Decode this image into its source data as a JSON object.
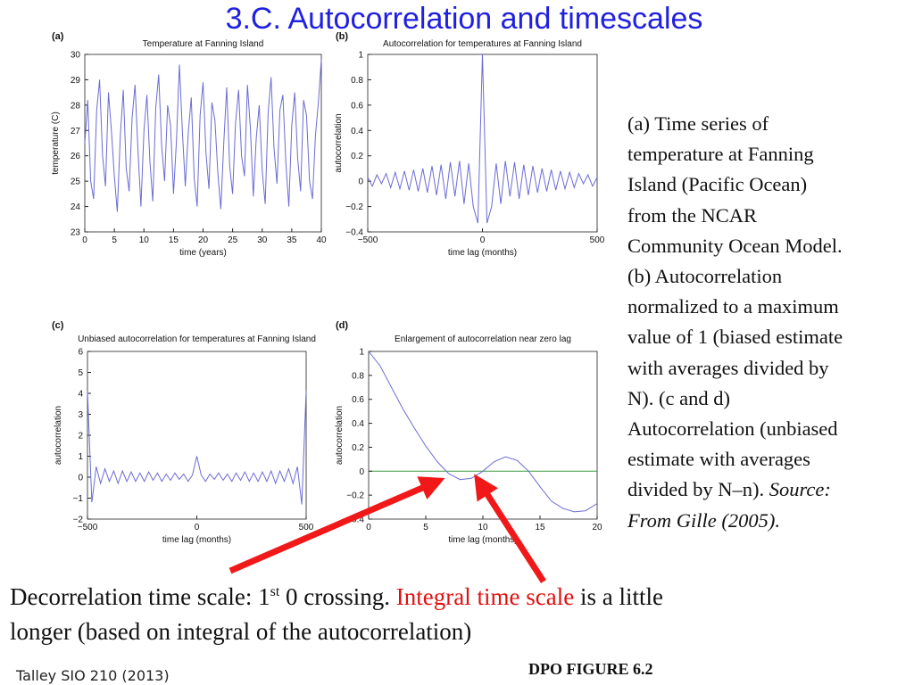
{
  "title": "3.C. Autocorrelation and timescales",
  "chart_data": [
    {
      "type": "line",
      "label": "(a)",
      "title": "Temperature at Fanning Island",
      "xlabel": "time (years)",
      "ylabel": "temperature (C)",
      "color": "#6b6bd6",
      "xlim": [
        0,
        40
      ],
      "ylim": [
        23,
        30
      ],
      "xticks": [
        0,
        5,
        10,
        15,
        20,
        25,
        30,
        35,
        40
      ],
      "yticks": [
        23,
        24,
        25,
        26,
        27,
        28,
        29,
        30
      ],
      "x": [
        0,
        0.5,
        1,
        1.5,
        2,
        2.5,
        3,
        3.5,
        4,
        4.5,
        5,
        5.5,
        6,
        6.5,
        7,
        7.5,
        8,
        8.5,
        9,
        9.5,
        10,
        10.5,
        11,
        11.5,
        12,
        12.5,
        13,
        13.5,
        14,
        14.5,
        15,
        15.5,
        16,
        16.5,
        17,
        17.5,
        18,
        18.5,
        19,
        19.5,
        20,
        20.5,
        21,
        21.5,
        22,
        22.5,
        23,
        23.5,
        24,
        24.5,
        25,
        25.5,
        26,
        26.5,
        27,
        27.5,
        28,
        28.5,
        29,
        29.5,
        30,
        30.5,
        31,
        31.5,
        32,
        32.5,
        33,
        33.5,
        34,
        34.5,
        35,
        35.5,
        36,
        36.5,
        37,
        37.5,
        38,
        38.5,
        39,
        39.5,
        40
      ],
      "values": [
        26.5,
        28.2,
        25.0,
        24.3,
        27.8,
        29.0,
        26.0,
        24.8,
        28.5,
        27.0,
        25.2,
        23.8,
        26.8,
        28.6,
        25.5,
        24.6,
        27.5,
        28.8,
        26.2,
        24.0,
        27.0,
        28.4,
        25.8,
        24.2,
        27.9,
        29.2,
        26.4,
        25.0,
        28.0,
        27.2,
        24.5,
        26.6,
        29.6,
        27.0,
        24.8,
        26.9,
        28.3,
        25.1,
        24.0,
        27.6,
        28.9,
        26.1,
        24.7,
        28.1,
        27.4,
        25.3,
        23.9,
        26.5,
        28.7,
        25.6,
        24.5,
        27.3,
        28.6,
        26.0,
        25.2,
        28.8,
        27.1,
        24.4,
        26.7,
        28.0,
        25.4,
        24.1,
        27.7,
        29.1,
        26.3,
        24.9,
        27.8,
        28.4,
        25.7,
        24.0,
        27.2,
        28.5,
        25.9,
        24.6,
        28.2,
        27.6,
        25.0,
        24.3,
        26.8,
        28.1,
        29.8
      ]
    },
    {
      "type": "line",
      "label": "(b)",
      "title": "Autocorrelation for temperatures at Fanning Island",
      "xlabel": "time lag (months)",
      "ylabel": "autocorrelation",
      "color": "#6b6bd6",
      "xlim": [
        -500,
        500
      ],
      "ylim": [
        -0.4,
        1
      ],
      "xticks": [
        {
          "value": -500,
          "label": "−500"
        },
        0,
        500
      ],
      "yticks": [
        {
          "value": -0.4,
          "label": "−0.4"
        },
        {
          "value": -0.2,
          "label": "−0.2"
        },
        0,
        0.2,
        0.4,
        0.6,
        0.8,
        1
      ],
      "x": [
        -500,
        -480,
        -460,
        -440,
        -420,
        -400,
        -380,
        -360,
        -340,
        -320,
        -300,
        -280,
        -260,
        -240,
        -220,
        -200,
        -180,
        -160,
        -140,
        -120,
        -100,
        -80,
        -60,
        -40,
        -20,
        0,
        20,
        40,
        60,
        80,
        100,
        120,
        140,
        160,
        180,
        200,
        220,
        240,
        260,
        280,
        300,
        320,
        340,
        360,
        380,
        400,
        420,
        440,
        460,
        480,
        500
      ],
      "values": [
        0.03,
        -0.04,
        0.05,
        -0.02,
        0.06,
        -0.05,
        0.07,
        -0.06,
        0.08,
        -0.07,
        0.09,
        -0.08,
        0.1,
        -0.09,
        0.12,
        -0.11,
        0.13,
        -0.14,
        0.15,
        -0.12,
        0.16,
        -0.18,
        0.14,
        -0.2,
        -0.33,
        1,
        -0.33,
        -0.2,
        0.14,
        -0.18,
        0.16,
        -0.12,
        0.15,
        -0.14,
        0.13,
        -0.11,
        0.12,
        -0.09,
        0.1,
        -0.08,
        0.09,
        -0.07,
        0.08,
        -0.06,
        0.07,
        -0.05,
        0.06,
        -0.02,
        0.05,
        -0.04,
        0.03
      ]
    },
    {
      "type": "line",
      "label": "(c)",
      "title": "Unbiased autocorrelation for temperatures at Fanning Island",
      "xlabel": "time lag (months)",
      "ylabel": "autocorrelation",
      "color": "#6b6bd6",
      "xlim": [
        -500,
        500
      ],
      "ylim": [
        -2,
        6
      ],
      "xticks": [
        {
          "value": -500,
          "label": "−500"
        },
        0,
        500
      ],
      "yticks": [
        {
          "value": -2,
          "label": "−2"
        },
        {
          "value": -1,
          "label": "−1"
        },
        0,
        1,
        2,
        3,
        4,
        5,
        6
      ],
      "x": [
        -500,
        -480,
        -460,
        -440,
        -420,
        -400,
        -380,
        -360,
        -340,
        -320,
        -300,
        -280,
        -260,
        -240,
        -220,
        -200,
        -180,
        -160,
        -140,
        -120,
        -100,
        -80,
        -60,
        -40,
        -20,
        0,
        20,
        40,
        60,
        80,
        100,
        120,
        140,
        160,
        180,
        200,
        220,
        240,
        260,
        280,
        300,
        320,
        340,
        360,
        380,
        400,
        420,
        440,
        460,
        480,
        500
      ],
      "values": [
        4.1,
        -1.2,
        0.5,
        -0.3,
        0.4,
        -0.2,
        0.3,
        -0.3,
        0.3,
        -0.2,
        0.25,
        -0.2,
        0.2,
        -0.2,
        0.25,
        -0.15,
        0.2,
        -0.2,
        0.15,
        -0.15,
        0.2,
        -0.1,
        0.15,
        -0.2,
        0.1,
        1.0,
        0.1,
        -0.2,
        0.15,
        -0.1,
        0.2,
        -0.15,
        0.15,
        -0.2,
        0.2,
        -0.15,
        0.25,
        -0.2,
        0.2,
        -0.2,
        0.25,
        -0.2,
        0.3,
        -0.3,
        0.3,
        -0.2,
        0.4,
        -0.3,
        0.5,
        -1.3,
        4.1
      ]
    },
    {
      "type": "line",
      "label": "(d)",
      "title": "Enlargement of autocorrelation near zero lag",
      "xlabel": "time lag (months)",
      "ylabel": "autocorrelation",
      "color": "#6b6bd6",
      "xlim": [
        0,
        20
      ],
      "ylim": [
        -0.4,
        1
      ],
      "xticks": [
        0,
        5,
        10,
        15,
        20
      ],
      "yticks": [
        {
          "value": -0.4,
          "label": "−0.4"
        },
        {
          "value": -0.2,
          "label": "−0.2"
        },
        0,
        0.2,
        0.4,
        0.6,
        0.8,
        1
      ],
      "ref_line": 0,
      "ref_color": "#3a9a3a",
      "x": [
        0,
        1,
        2,
        3,
        4,
        5,
        6,
        7,
        8,
        9,
        10,
        11,
        12,
        13,
        14,
        15,
        16,
        17,
        18,
        19,
        20
      ],
      "values": [
        1,
        0.88,
        0.7,
        0.52,
        0.36,
        0.21,
        0.08,
        -0.02,
        -0.07,
        -0.06,
        0.0,
        0.08,
        0.12,
        0.09,
        0.0,
        -0.13,
        -0.25,
        -0.31,
        -0.34,
        -0.33,
        -0.27
      ]
    }
  ],
  "caption_lines": [
    "(a) Time series of",
    "temperature at Fanning",
    "Island (Pacific Ocean)",
    "from the NCAR",
    "Community Ocean Model.",
    "(b) Autocorrelation",
    "normalized to a maximum",
    "value of 1 (biased estimate",
    "with averages divided by",
    "N). (c and d)",
    "Autocorrelation (unbiased",
    "estimate with averages"
  ],
  "caption_tail": "divided by N–n).",
  "source_label": "Source:",
  "source_ref": "From Gille (2005).",
  "note": {
    "part1": "Decorrelation time scale: 1",
    "sup": "st",
    "part2": "0 crossing.",
    "highlight": "Integral time scale",
    "part3": "is a little",
    "line2": "longer (based on integral of the  autocorrelation)"
  },
  "footer_left": "Talley SIO 210 (2013)",
  "footer_right": "DPO FIGURE 6.2"
}
